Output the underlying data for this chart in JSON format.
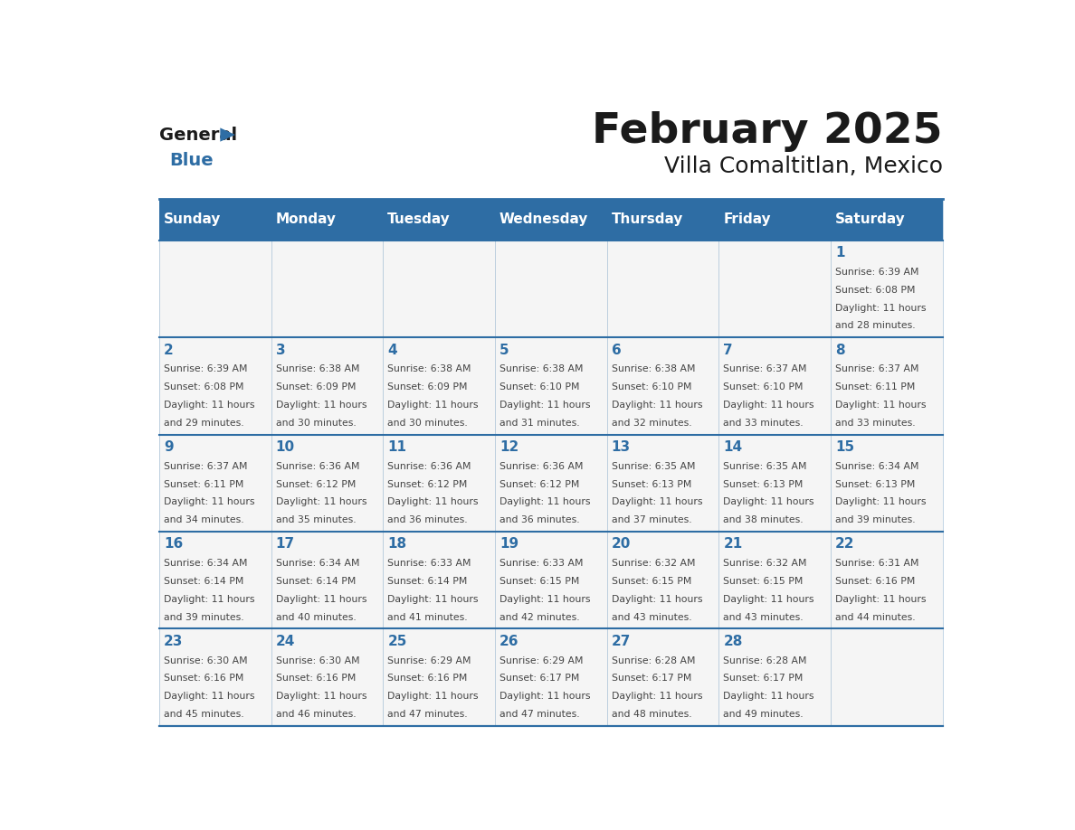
{
  "title": "February 2025",
  "subtitle": "Villa Comaltitlan, Mexico",
  "header_bg": "#2E6DA4",
  "header_text_color": "#FFFFFF",
  "cell_bg": "#F5F5F5",
  "day_names": [
    "Sunday",
    "Monday",
    "Tuesday",
    "Wednesday",
    "Thursday",
    "Friday",
    "Saturday"
  ],
  "day_number_color": "#2E6DA4",
  "text_color": "#444444",
  "line_color": "#2E6DA4",
  "calendar": [
    [
      null,
      null,
      null,
      null,
      null,
      null,
      1
    ],
    [
      2,
      3,
      4,
      5,
      6,
      7,
      8
    ],
    [
      9,
      10,
      11,
      12,
      13,
      14,
      15
    ],
    [
      16,
      17,
      18,
      19,
      20,
      21,
      22
    ],
    [
      23,
      24,
      25,
      26,
      27,
      28,
      null
    ]
  ],
  "sunrise": {
    "1": "6:39 AM",
    "2": "6:39 AM",
    "3": "6:38 AM",
    "4": "6:38 AM",
    "5": "6:38 AM",
    "6": "6:38 AM",
    "7": "6:37 AM",
    "8": "6:37 AM",
    "9": "6:37 AM",
    "10": "6:36 AM",
    "11": "6:36 AM",
    "12": "6:36 AM",
    "13": "6:35 AM",
    "14": "6:35 AM",
    "15": "6:34 AM",
    "16": "6:34 AM",
    "17": "6:34 AM",
    "18": "6:33 AM",
    "19": "6:33 AM",
    "20": "6:32 AM",
    "21": "6:32 AM",
    "22": "6:31 AM",
    "23": "6:30 AM",
    "24": "6:30 AM",
    "25": "6:29 AM",
    "26": "6:29 AM",
    "27": "6:28 AM",
    "28": "6:28 AM"
  },
  "sunset": {
    "1": "6:08 PM",
    "2": "6:08 PM",
    "3": "6:09 PM",
    "4": "6:09 PM",
    "5": "6:10 PM",
    "6": "6:10 PM",
    "7": "6:10 PM",
    "8": "6:11 PM",
    "9": "6:11 PM",
    "10": "6:12 PM",
    "11": "6:12 PM",
    "12": "6:12 PM",
    "13": "6:13 PM",
    "14": "6:13 PM",
    "15": "6:13 PM",
    "16": "6:14 PM",
    "17": "6:14 PM",
    "18": "6:14 PM",
    "19": "6:15 PM",
    "20": "6:15 PM",
    "21": "6:15 PM",
    "22": "6:16 PM",
    "23": "6:16 PM",
    "24": "6:16 PM",
    "25": "6:16 PM",
    "26": "6:17 PM",
    "27": "6:17 PM",
    "28": "6:17 PM"
  },
  "daylight": {
    "1": "11 hours and 28 minutes.",
    "2": "11 hours and 29 minutes.",
    "3": "11 hours and 30 minutes.",
    "4": "11 hours and 30 minutes.",
    "5": "11 hours and 31 minutes.",
    "6": "11 hours and 32 minutes.",
    "7": "11 hours and 33 minutes.",
    "8": "11 hours and 33 minutes.",
    "9": "11 hours and 34 minutes.",
    "10": "11 hours and 35 minutes.",
    "11": "11 hours and 36 minutes.",
    "12": "11 hours and 36 minutes.",
    "13": "11 hours and 37 minutes.",
    "14": "11 hours and 38 minutes.",
    "15": "11 hours and 39 minutes.",
    "16": "11 hours and 39 minutes.",
    "17": "11 hours and 40 minutes.",
    "18": "11 hours and 41 minutes.",
    "19": "11 hours and 42 minutes.",
    "20": "11 hours and 43 minutes.",
    "21": "11 hours and 43 minutes.",
    "22": "11 hours and 44 minutes.",
    "23": "11 hours and 45 minutes.",
    "24": "11 hours and 46 minutes.",
    "25": "11 hours and 47 minutes.",
    "26": "11 hours and 47 minutes.",
    "27": "11 hours and 48 minutes.",
    "28": "11 hours and 49 minutes."
  }
}
